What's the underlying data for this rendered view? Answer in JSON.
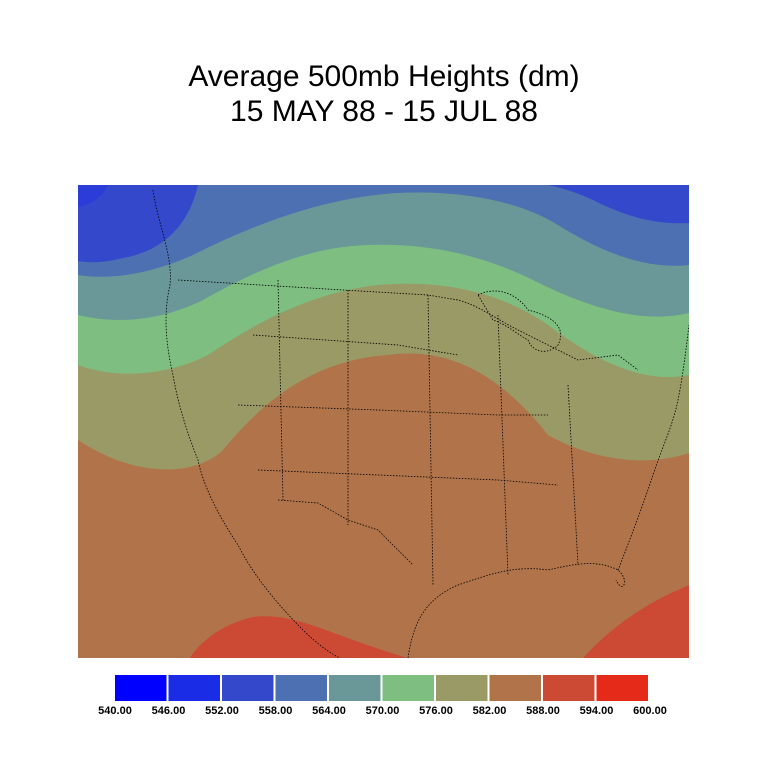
{
  "title": {
    "line1": "Average 500mb Heights (dm)",
    "line2": "15 MAY 88 - 15 JUL 88"
  },
  "legend": {
    "colors": [
      "#0000ff",
      "#1a2ce6",
      "#3448cc",
      "#4c70b2",
      "#6a9898",
      "#7ebe80",
      "#9a9a66",
      "#b0734a",
      "#cc4a34",
      "#e62a1a"
    ],
    "labels": [
      "540.00",
      "546.00",
      "552.00",
      "558.00",
      "564.00",
      "570.00",
      "576.00",
      "582.00",
      "588.00",
      "594.00",
      "600.00"
    ]
  },
  "map": {
    "region": "North America",
    "band_colors": [
      "#2e46cc",
      "#4c70b2",
      "#6a9898",
      "#7ebe80",
      "#9a9a66",
      "#b0734a",
      "#cc4a34"
    ]
  }
}
